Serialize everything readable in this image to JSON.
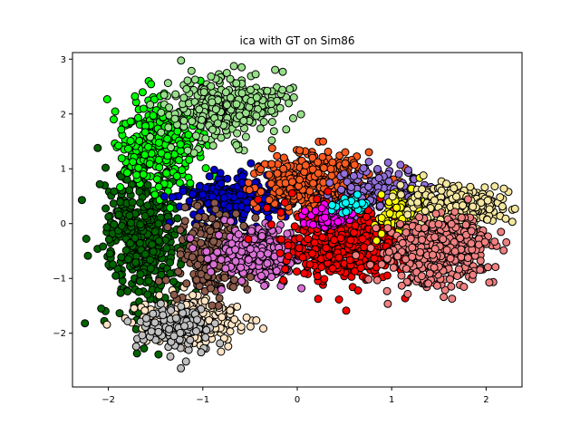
{
  "chart_data": {
    "type": "scatter",
    "title": "ica with GT on Sim86",
    "xlabel": "",
    "ylabel": "",
    "xlim": [
      -2.38,
      2.38
    ],
    "ylim": [
      -2.98,
      3.12
    ],
    "xticks": [
      -2,
      -1,
      0,
      1,
      2
    ],
    "yticks": [
      -2,
      -1,
      0,
      1,
      2,
      3
    ],
    "grid": false,
    "legend": "none",
    "marker_edge_color": "#000000",
    "clusters": [
      {
        "color": "#006400",
        "center": [
          -1.65,
          -0.3
        ],
        "spread": [
          0.22,
          0.7
        ],
        "count": 420
      },
      {
        "color": "#00ff00",
        "center": [
          -1.45,
          1.5
        ],
        "spread": [
          0.2,
          0.4
        ],
        "count": 300
      },
      {
        "color": "#98df8a",
        "center": [
          -0.75,
          2.1
        ],
        "spread": [
          0.3,
          0.3
        ],
        "count": 320
      },
      {
        "color": "#ffe4c4",
        "center": [
          -1.1,
          -1.8
        ],
        "spread": [
          0.25,
          0.22
        ],
        "count": 300
      },
      {
        "color": "#c0c0c0",
        "center": [
          -1.3,
          -1.9
        ],
        "spread": [
          0.2,
          0.2
        ],
        "count": 120
      },
      {
        "color": "#0000cd",
        "center": [
          -0.65,
          0.45
        ],
        "spread": [
          0.28,
          0.2
        ],
        "count": 300
      },
      {
        "color": "#8b5a4a",
        "center": [
          -0.9,
          -0.55
        ],
        "spread": [
          0.18,
          0.35
        ],
        "count": 300
      },
      {
        "color": "#da70d6",
        "center": [
          -0.4,
          -0.55
        ],
        "spread": [
          0.25,
          0.25
        ],
        "count": 320
      },
      {
        "color": "#ff5a1f",
        "center": [
          0.2,
          0.75
        ],
        "spread": [
          0.3,
          0.28
        ],
        "count": 420
      },
      {
        "color": "#9370db",
        "center": [
          0.9,
          0.6
        ],
        "spread": [
          0.25,
          0.2
        ],
        "count": 150
      },
      {
        "color": "#ff0000",
        "center": [
          0.55,
          -0.35
        ],
        "spread": [
          0.35,
          0.35
        ],
        "count": 520
      },
      {
        "color": "#ff00ff",
        "center": [
          0.35,
          0.15
        ],
        "spread": [
          0.15,
          0.12
        ],
        "count": 90
      },
      {
        "color": "#00ffff",
        "center": [
          0.55,
          0.35
        ],
        "spread": [
          0.1,
          0.08
        ],
        "count": 40
      },
      {
        "color": "#ffff00",
        "center": [
          1.2,
          0.15
        ],
        "spread": [
          0.15,
          0.22
        ],
        "count": 160
      },
      {
        "color": "#f5e6a0",
        "center": [
          1.7,
          0.3
        ],
        "spread": [
          0.25,
          0.2
        ],
        "count": 320
      },
      {
        "color": "#f08080",
        "center": [
          1.5,
          -0.5
        ],
        "spread": [
          0.28,
          0.3
        ],
        "count": 420
      }
    ]
  }
}
